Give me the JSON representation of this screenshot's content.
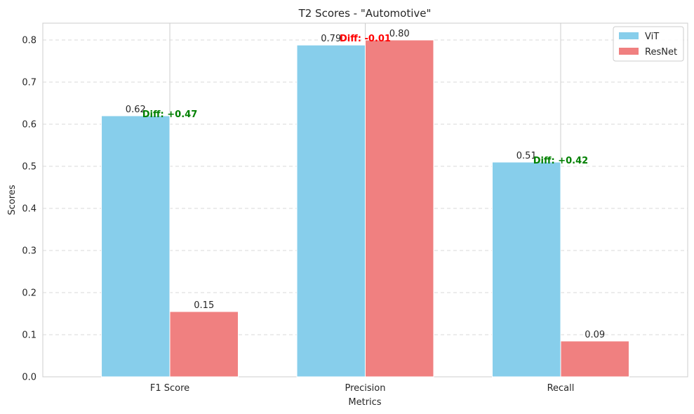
{
  "chart_data": {
    "type": "bar",
    "title": "T2 Scores - \"Automotive\"",
    "xlabel": "Metrics",
    "ylabel": "Scores",
    "categories": [
      "F1 Score",
      "Precision",
      "Recall"
    ],
    "series": [
      {
        "name": "ViT",
        "values": [
          0.62,
          0.788,
          0.51
        ],
        "labels": [
          "0.62",
          "0.79",
          "0.51"
        ],
        "color": "#87CEEB"
      },
      {
        "name": "ResNet",
        "values": [
          0.155,
          0.8,
          0.085
        ],
        "labels": [
          "0.15",
          "0.80",
          "0.09"
        ],
        "color": "#F08080"
      }
    ],
    "annotations": [
      {
        "category": "F1 Score",
        "text": "Diff: +0.47",
        "color": "#008000"
      },
      {
        "category": "Precision",
        "text": "Diff: -0.01",
        "color": "#FF0000"
      },
      {
        "category": "Recall",
        "text": "Diff: +0.42",
        "color": "#008000"
      }
    ],
    "ylim": [
      0,
      0.84
    ],
    "yticks": [
      "0.0",
      "0.1",
      "0.2",
      "0.3",
      "0.4",
      "0.5",
      "0.6",
      "0.7",
      "0.8"
    ],
    "grid": true,
    "legend_position": "top-right"
  }
}
